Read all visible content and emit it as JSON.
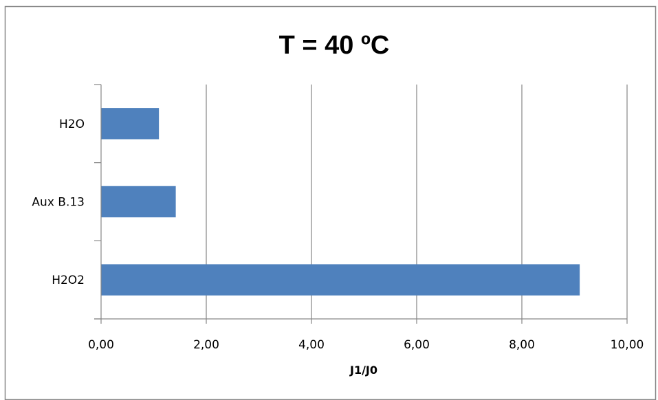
{
  "chart_data": {
    "type": "bar",
    "orientation": "horizontal",
    "title": "T = 40 ºC",
    "xlabel": "J1/J0",
    "ylabel": "",
    "categories": [
      "H2O2",
      "Aux B.13",
      "H2O"
    ],
    "values": [
      9.1,
      1.42,
      1.1
    ],
    "xlim": [
      0,
      10
    ],
    "xticks": [
      "0,00",
      "2,00",
      "4,00",
      "6,00",
      "8,00",
      "10,00"
    ],
    "grid": true,
    "legend": "none",
    "bar_color": "#4F81BD",
    "grid_color": "#868686",
    "border_color": "#868686"
  }
}
